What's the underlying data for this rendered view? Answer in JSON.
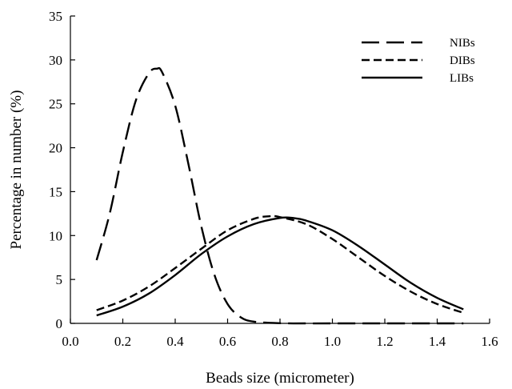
{
  "chart_data": {
    "type": "line",
    "title": "",
    "xlabel": "Beads size (micrometer)",
    "ylabel": "Percentage in number (%)",
    "xlim": [
      0.0,
      1.6
    ],
    "ylim": [
      0,
      35
    ],
    "xticks": [
      0.0,
      0.2,
      0.4,
      0.6,
      0.8,
      1.0,
      1.2,
      1.4,
      1.6
    ],
    "xtick_labels": [
      "0.0",
      "0.2",
      "0.4",
      "0.6",
      "0.8",
      "1.0",
      "1.2",
      "1.4",
      "1.6"
    ],
    "yticks": [
      0,
      5,
      10,
      15,
      20,
      25,
      30,
      35
    ],
    "ytick_labels": [
      "0",
      "5",
      "10",
      "15",
      "20",
      "25",
      "30",
      "35"
    ],
    "grid": false,
    "legend_position": "top-right",
    "series": [
      {
        "name": "NIBs",
        "dash": "long-dash",
        "x": [
          0.1,
          0.15,
          0.2,
          0.25,
          0.3,
          0.33,
          0.35,
          0.4,
          0.45,
          0.5,
          0.55,
          0.6,
          0.65,
          0.7,
          0.8,
          0.9,
          1.0,
          1.2,
          1.5
        ],
        "y": [
          7.2,
          12.5,
          19.5,
          25.4,
          28.5,
          29.0,
          28.6,
          24.8,
          18.2,
          11.0,
          5.5,
          2.2,
          0.7,
          0.2,
          0.02,
          0.0,
          0.0,
          0.0,
          0.0
        ]
      },
      {
        "name": "DIBs",
        "dash": "short-dash",
        "x": [
          0.1,
          0.2,
          0.3,
          0.4,
          0.5,
          0.6,
          0.7,
          0.76,
          0.8,
          0.9,
          1.0,
          1.1,
          1.2,
          1.3,
          1.4,
          1.5
        ],
        "y": [
          1.5,
          2.6,
          4.2,
          6.3,
          8.5,
          10.6,
          11.9,
          12.2,
          12.1,
          11.3,
          9.6,
          7.5,
          5.4,
          3.6,
          2.2,
          1.2
        ]
      },
      {
        "name": "LIBs",
        "dash": "solid",
        "x": [
          0.1,
          0.2,
          0.3,
          0.4,
          0.5,
          0.6,
          0.7,
          0.8,
          0.85,
          0.9,
          1.0,
          1.1,
          1.2,
          1.3,
          1.4,
          1.5
        ],
        "y": [
          0.9,
          1.9,
          3.4,
          5.5,
          7.9,
          9.9,
          11.3,
          12.0,
          12.0,
          11.7,
          10.6,
          8.8,
          6.7,
          4.6,
          2.9,
          1.6
        ]
      }
    ]
  }
}
